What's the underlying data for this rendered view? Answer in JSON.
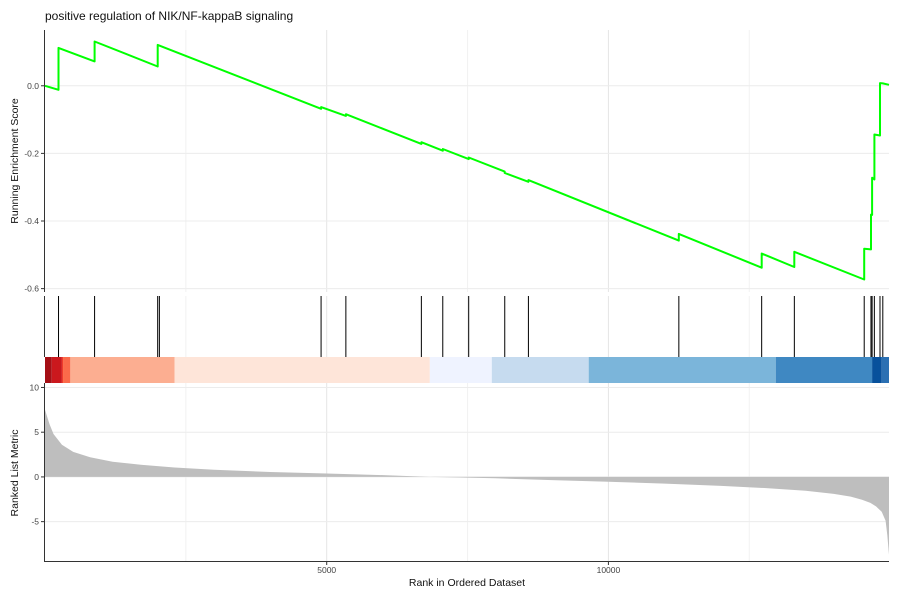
{
  "chart_data": {
    "type": "line",
    "title": "positive regulation of NIK/NF-kappaB signaling",
    "xlabel": "Rank in Ordered Dataset",
    "x_ticks": [
      5000,
      10000
    ],
    "xlim": [
      0,
      14980
    ],
    "grid": true,
    "enrichment_panel": {
      "ylabel": "Running Enrichment Score",
      "ylim": [
        -0.61,
        0.165
      ],
      "y_ticks": [
        0.0,
        -0.2,
        -0.4,
        -0.6
      ],
      "y_tick_labels": [
        "0.0",
        "-0.2",
        "-0.4",
        "-0.6"
      ],
      "line_color": "#00ff00",
      "series": [
        {
          "x": [
            0,
            240,
            240,
            880,
            880,
            2000,
            2000,
            4900,
            4900,
            5340,
            5340,
            6680,
            6680,
            7060,
            7060,
            7520,
            7520,
            8160,
            8160,
            8580,
            8580,
            11250,
            11250,
            12720,
            12720,
            13300,
            13300,
            14540,
            14540,
            14660,
            14660,
            14680,
            14680,
            14720,
            14720,
            14820,
            14820,
            14870,
            14870,
            14980
          ],
          "y": [
            0.0,
            -0.012,
            0.112,
            0.072,
            0.131,
            0.057,
            0.121,
            -0.068,
            -0.063,
            -0.089,
            -0.084,
            -0.172,
            -0.167,
            -0.192,
            -0.187,
            -0.217,
            -0.212,
            -0.254,
            -0.258,
            -0.284,
            -0.279,
            -0.458,
            -0.438,
            -0.538,
            -0.496,
            -0.536,
            -0.491,
            -0.573,
            -0.482,
            -0.484,
            -0.381,
            -0.382,
            -0.272,
            -0.277,
            -0.144,
            -0.147,
            0.008,
            0.007,
            0.007,
            0.003
          ]
        }
      ]
    },
    "hits_panel": {
      "hit_ranks": [
        240,
        880,
        2000,
        2030,
        4900,
        5340,
        6680,
        7060,
        7520,
        8160,
        8580,
        11250,
        12720,
        13300,
        14540,
        14660,
        14680,
        14720,
        14820,
        14870
      ]
    },
    "color_bar": {
      "segments": [
        {
          "from": 0,
          "to": 120,
          "color": "#a50f15"
        },
        {
          "from": 120,
          "to": 300,
          "color": "#cb181d"
        },
        {
          "from": 300,
          "to": 320,
          "color": "#ef3b2c"
        },
        {
          "from": 320,
          "to": 450,
          "color": "#fb6a4a"
        },
        {
          "from": 450,
          "to": 2300,
          "color": "#fcae91"
        },
        {
          "from": 2300,
          "to": 6830,
          "color": "#fee5d9"
        },
        {
          "from": 6830,
          "to": 7930,
          "color": "#eff3ff"
        },
        {
          "from": 7930,
          "to": 9650,
          "color": "#c6dbef"
        },
        {
          "from": 9650,
          "to": 12970,
          "color": "#7bb5da"
        },
        {
          "from": 12970,
          "to": 14680,
          "color": "#3f88c2"
        },
        {
          "from": 14680,
          "to": 14850,
          "color": "#08519c"
        },
        {
          "from": 14850,
          "to": 14980,
          "color": "#2b70b3"
        }
      ]
    },
    "ranked_panel": {
      "ylabel": "Ranked List Metric",
      "ylim": [
        -9.4,
        10.5
      ],
      "y_ticks": [
        10,
        5,
        0,
        -5
      ],
      "y_tick_labels": [
        "10",
        "5",
        "0",
        "-5"
      ],
      "fill_color": "#bebebe",
      "series": [
        {
          "x": [
            0,
            30,
            80,
            150,
            300,
            500,
            800,
            1200,
            1700,
            2300,
            3000,
            4000,
            5000,
            6000,
            6830,
            8000,
            9000,
            10000,
            11000,
            12000,
            12800,
            13500,
            14000,
            14300,
            14500,
            14650,
            14750,
            14850,
            14920,
            14950,
            14980
          ],
          "y": [
            7.5,
            6.9,
            5.9,
            4.8,
            3.6,
            2.8,
            2.2,
            1.7,
            1.35,
            1.05,
            0.8,
            0.55,
            0.38,
            0.2,
            0.0,
            -0.15,
            -0.35,
            -0.55,
            -0.75,
            -1.0,
            -1.25,
            -1.55,
            -1.9,
            -2.2,
            -2.55,
            -2.9,
            -3.3,
            -3.9,
            -4.9,
            -6.5,
            -8.7
          ]
        }
      ]
    }
  }
}
